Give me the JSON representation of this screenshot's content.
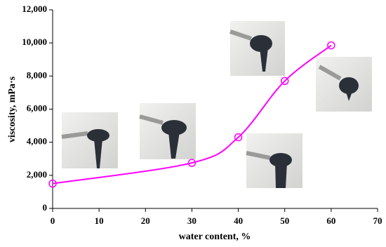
{
  "chart_data": {
    "type": "line",
    "x_label": "water content, %",
    "y_label": "viscosity, mPa·s",
    "x": [
      0,
      30,
      40,
      50,
      60
    ],
    "values": [
      1500,
      2750,
      4300,
      7700,
      9850
    ],
    "color": "#ff00ff",
    "smooth": true,
    "xlim": [
      0,
      70
    ],
    "xticks": [
      0,
      10,
      20,
      30,
      40,
      50,
      60,
      70
    ],
    "ylim": [
      0,
      12000
    ],
    "yticks": [
      0,
      {
        "value": 2000,
        "label": "2,000"
      },
      {
        "value": 4000,
        "label": "4,000"
      },
      {
        "value": 6000,
        "label": "6,000"
      },
      {
        "value": 8000,
        "label": "8,000"
      },
      {
        "value": 10000,
        "label": "10,000"
      },
      {
        "value": 12000,
        "label": "12,000"
      }
    ]
  }
}
